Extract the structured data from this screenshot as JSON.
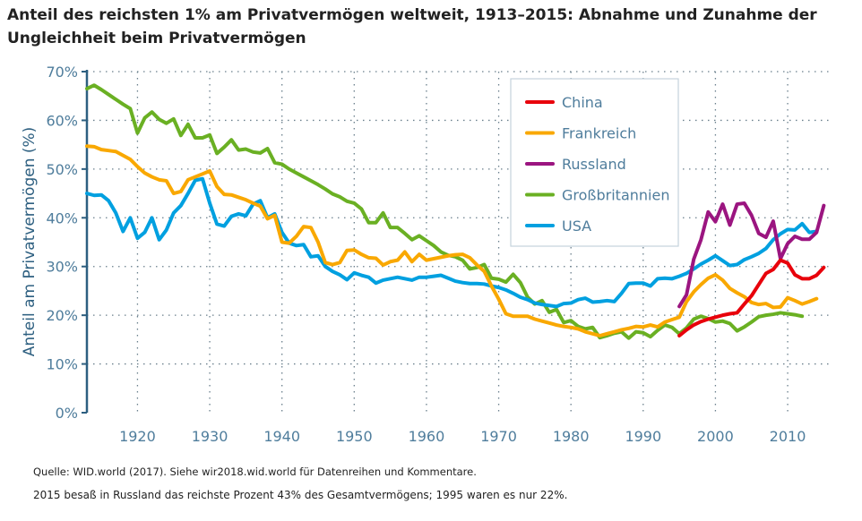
{
  "title": "Anteil des reichsten 1% am Privatvermögen weltweit, 1913–2015: Abnahme und Zunahme der Ungleichheit beim Privatvermögen",
  "source": "Quelle: WID.world (2017). Siehe wir2018.wid.world für Datenreihen und Kommentare.",
  "note": "2015 besaß in Russland das reichste Prozent 43% des Gesamtvermögens; 1995 waren es nur 22%.",
  "chart_data": {
    "type": "line",
    "title": "Anteil des reichsten 1% am Privatvermögen weltweit, 1913–2015: Abnahme und Zunahme der Ungleichheit beim Privatvermögen",
    "xlabel": "",
    "ylabel": "Anteil am Privatvermögen (%)",
    "xlim": [
      1913,
      2015.7
    ],
    "ylim": [
      0,
      70
    ],
    "xticks": [
      1920,
      1930,
      1940,
      1950,
      1960,
      1970,
      1980,
      1990,
      2000,
      2010
    ],
    "yticks": [
      0,
      10,
      20,
      30,
      40,
      50,
      60,
      70
    ],
    "ytick_labels": [
      "0%",
      "10%",
      "20%",
      "30%",
      "40%",
      "50%",
      "60%",
      "70%"
    ],
    "grid": true,
    "legend": "top-right",
    "series": [
      {
        "name": "China",
        "color": "#e8000b",
        "start": 1995,
        "values": [
          15.8,
          17,
          18,
          18.7,
          19.2,
          19.6,
          20,
          20.3,
          20.5,
          22.3,
          24,
          26.3,
          28.6,
          29.4,
          31.3,
          30.7,
          28.3,
          27.5,
          27.5,
          28.2,
          29.8
        ]
      },
      {
        "name": "Frankreich",
        "color": "#f9a800",
        "start": 1913,
        "values": [
          54.7,
          54.6,
          54,
          53.8,
          53.6,
          52.8,
          52,
          50.5,
          49.2,
          48.4,
          47.8,
          47.6,
          45,
          45.4,
          47.8,
          48.4,
          49,
          49.6,
          46.4,
          44.8,
          44.7,
          44.2,
          43.7,
          43,
          42.4,
          39.8,
          40.5,
          35,
          34.8,
          36.2,
          38.2,
          38,
          35,
          30.8,
          30.4,
          30.8,
          33.3,
          33.4,
          32.5,
          31.8,
          31.7,
          30.3,
          31,
          31.3,
          33,
          31,
          32.5,
          31.3,
          31.6,
          31.9,
          32.2,
          32.4,
          32.5,
          31.8,
          30.3,
          29,
          26,
          23.3,
          20.3,
          19.8,
          19.8,
          19.8,
          19.2,
          18.8,
          18.4,
          18,
          17.7,
          17.5,
          17.2,
          16.6,
          16.2,
          15.8,
          16.2,
          16.6,
          17,
          17.3,
          17.7,
          17.6,
          18,
          17.6,
          18.6,
          19.1,
          19.6,
          22.8,
          24.8,
          26.3,
          27.6,
          28.3,
          27.2,
          25.5,
          24.6,
          23.8,
          22.6,
          22.2,
          22.4,
          21.6,
          21.7,
          23.6,
          23,
          22.3,
          22.8,
          23.4
        ]
      },
      {
        "name": "Russland",
        "color": "#9b1580",
        "start": 1995,
        "values": [
          21.8,
          24.2,
          31.5,
          35.5,
          41.2,
          39.2,
          42.8,
          38.5,
          42.8,
          43,
          40.5,
          36.8,
          36,
          39.3,
          31.6,
          34.7,
          36.2,
          35.6,
          35.6,
          37,
          42.5
        ]
      },
      {
        "name": "Großbritannien",
        "color": "#6ab023",
        "start": 1913,
        "values": [
          66.5,
          67.2,
          66.3,
          65.3,
          64.3,
          63.3,
          62.4,
          57.4,
          60.5,
          61.7,
          60.2,
          59.4,
          60.3,
          56.9,
          59.2,
          56.4,
          56.4,
          57,
          53.2,
          54.5,
          56,
          53.9,
          54.1,
          53.5,
          53.3,
          54.2,
          51.3,
          51,
          50,
          49.2,
          48.4,
          47.6,
          46.8,
          45.9,
          44.9,
          44.3,
          43.4,
          43,
          41.8,
          39,
          39,
          41,
          38,
          38,
          36.8,
          35.5,
          36.3,
          35.3,
          34.3,
          33,
          32.3,
          32,
          31.3,
          29.5,
          29.8,
          30.4,
          27.6,
          27.4,
          26.8,
          28.4,
          26.7,
          23.7,
          22.3,
          23,
          20.6,
          21.2,
          18.5,
          18.9,
          17.7,
          17.2,
          17.5,
          15.4,
          15.8,
          16.3,
          16.6,
          15.3,
          16.6,
          16.4,
          15.6,
          16.9,
          18,
          17.5,
          16.2,
          17.4,
          19.2,
          19.8,
          19.3,
          18.6,
          18.8,
          18.3,
          16.8,
          17.6,
          18.6,
          19.7,
          20,
          20.2,
          20.5,
          20.3,
          20.1,
          19.8
        ]
      },
      {
        "name": "USA",
        "color": "#00a0e0",
        "start": 1913,
        "values": [
          45,
          44.6,
          44.7,
          43.5,
          41,
          37.2,
          40,
          35.8,
          37,
          40,
          35.5,
          37.5,
          41,
          42.5,
          45,
          47.7,
          48,
          43,
          38.7,
          38.3,
          40.3,
          40.8,
          40.4,
          42.8,
          43.5,
          40,
          40.8,
          37,
          34.8,
          34.3,
          34.5,
          32,
          32.2,
          30,
          29,
          28.3,
          27.3,
          28.7,
          28.2,
          27.8,
          26.6,
          27.2,
          27.5,
          27.8,
          27.5,
          27.2,
          27.8,
          27.8,
          28,
          28.2,
          27.6,
          27,
          26.7,
          26.5,
          26.5,
          26.4,
          26,
          25.7,
          25.2,
          24.5,
          23.7,
          23.2,
          22.5,
          22.2,
          22,
          21.8,
          22.4,
          22.5,
          23.2,
          23.5,
          22.7,
          22.8,
          23,
          22.8,
          24.5,
          26.5,
          26.6,
          26.6,
          26,
          27.5,
          27.6,
          27.5,
          28,
          28.6,
          29.5,
          30.5,
          31.3,
          32.2,
          31.2,
          30.2,
          30.4,
          31.4,
          32,
          32.7,
          33.7,
          35.5,
          36.7,
          37.6,
          37.5,
          38.8,
          37,
          37.2
        ]
      }
    ]
  }
}
